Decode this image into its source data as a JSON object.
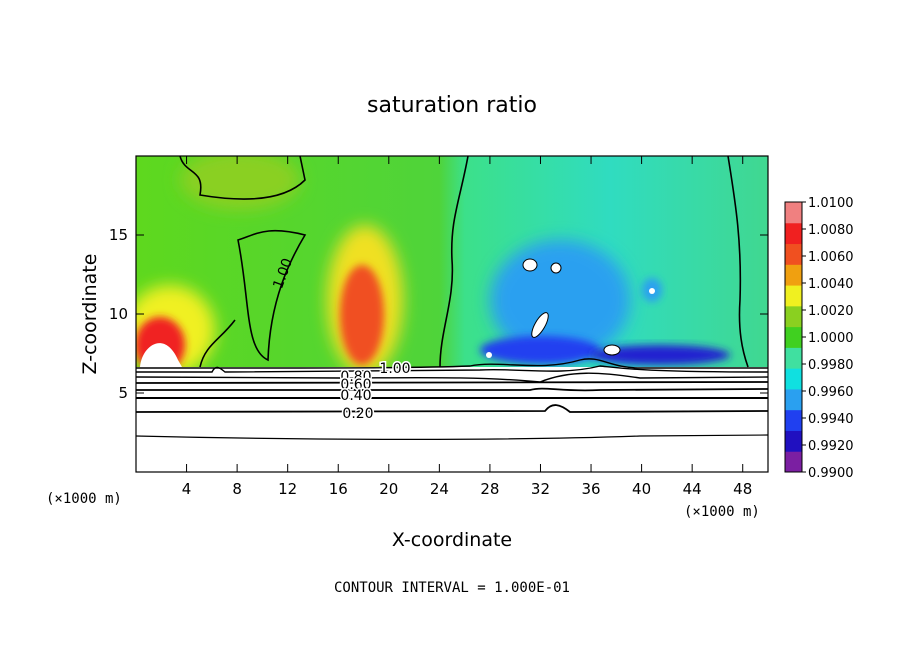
{
  "chart_data": {
    "type": "heatmap",
    "title": "saturation ratio",
    "xlabel": "X-coordinate",
    "ylabel": "Z-coordinate",
    "x_unit": "(×1000 m)",
    "z_unit": "",
    "xlim": [
      0,
      50
    ],
    "ylim": [
      0,
      20
    ],
    "x_ticks": [
      4,
      8,
      12,
      16,
      20,
      24,
      28,
      32,
      36,
      40,
      44,
      48
    ],
    "y_ticks": [
      5,
      10,
      15
    ],
    "colorbar": {
      "levels": [
        "0.9900",
        "0.9920",
        "0.9940",
        "0.9960",
        "0.9980",
        "1.0000",
        "1.0020",
        "1.0040",
        "1.0060",
        "1.0080",
        "1.0100"
      ],
      "colors": [
        "#7b1fa2",
        "#2010c0",
        "#2040f0",
        "#2aa0f0",
        "#10e0e0",
        "#40e0a0",
        "#40d020",
        "#8ad020",
        "#f0f020",
        "#f0a010",
        "#f05020",
        "#f02020",
        "#f08080"
      ]
    },
    "contour_labels": [
      "1.00",
      "1.00",
      "0.80",
      "0.60",
      "0.40",
      "0.20"
    ],
    "annotation": "CONTOUR INTERVAL = 1.000E-01"
  }
}
